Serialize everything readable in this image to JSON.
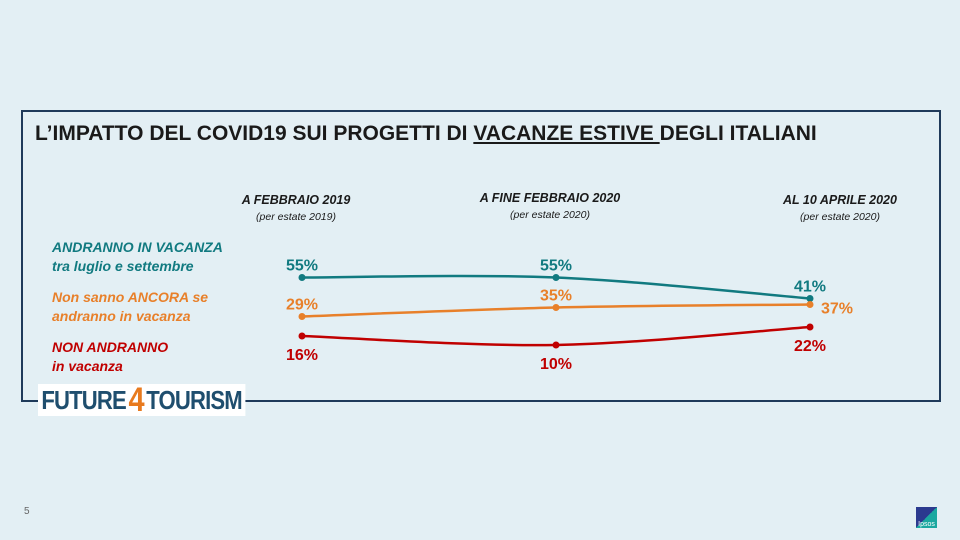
{
  "title": {
    "before": "L’IMPATTO DEL COVID19 SUI PROGETTI DI ",
    "underlined": "VACANZE ESTIVE ",
    "after": "DEGLI ITALIANI"
  },
  "chart_data": {
    "type": "line",
    "categories": [
      {
        "label": "A FEBBRAIO 2019",
        "sub": "(per estate 2019)"
      },
      {
        "label": "A FINE FEBBRAIO 2020",
        "sub": "(per estate 2020)"
      },
      {
        "label": "AL 10 APRILE 2020",
        "sub": "(per estate 2020)"
      }
    ],
    "series": [
      {
        "name": "ANDRANNO IN VACANZA",
        "name2": "tra luglio e settembre",
        "color": "#117a80",
        "values": [
          55,
          55,
          41
        ],
        "labels": [
          "55%",
          "55%",
          "41%"
        ]
      },
      {
        "name": "Non sanno ANCORA se",
        "name2": "andranno in vacanza",
        "color": "#e8802a",
        "values": [
          29,
          35,
          37
        ],
        "labels": [
          "29%",
          "35%",
          "37%"
        ]
      },
      {
        "name": "NON ANDRANNO",
        "name2": "in vacanza",
        "color": "#c00000",
        "values": [
          16,
          10,
          22
        ],
        "labels": [
          "16%",
          "10%",
          "22%"
        ]
      }
    ]
  },
  "logo": {
    "a": "FUTURE",
    "b": "4",
    "c": "TOURISM"
  },
  "page_number": "5",
  "brand": "Ipsos"
}
